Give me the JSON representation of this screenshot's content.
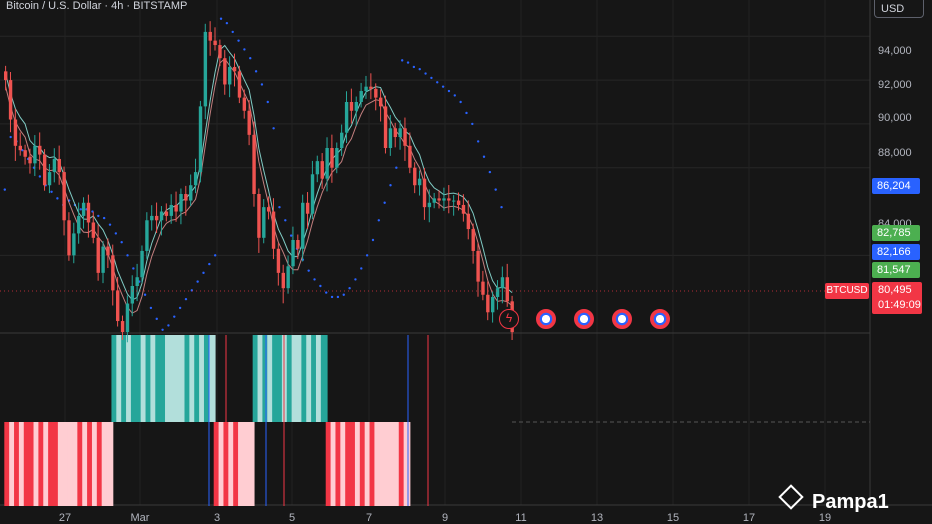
{
  "header": {
    "title": "Bitcoin / U.S. Dollar · 4h · BITSTAMP",
    "currency_button": "USD"
  },
  "price_axis": {
    "labels": [
      "94,000",
      "92,000",
      "90,000",
      "88,000",
      "84,000"
    ],
    "tags": [
      {
        "text": "86,204",
        "price": 86204,
        "color": "#2962ff"
      },
      {
        "text": "82,785",
        "price": 82785,
        "color": "#4caf50"
      },
      {
        "text": "82,166",
        "price": 82166,
        "color": "#2962ff"
      },
      {
        "text": "81,547",
        "price": 81547,
        "color": "#4caf50"
      }
    ],
    "last_price": "80,495",
    "countdown": "01:49:09",
    "symbol_tag": "BTCUSD"
  },
  "time_axis": {
    "labels": [
      "27",
      "Mar",
      "3",
      "5",
      "7",
      "9",
      "11",
      "13",
      "15",
      "17",
      "19"
    ]
  },
  "events": [
    {
      "name": "flash-icon",
      "kind": "flash"
    },
    {
      "name": "us-flag-icon",
      "kind": "us"
    },
    {
      "name": "us-flag-icon",
      "kind": "us"
    },
    {
      "name": "us-flag-icon",
      "kind": "us"
    },
    {
      "name": "us-flag-icon",
      "kind": "us"
    }
  ],
  "watermark": "Pampa1",
  "colors": {
    "up": "#26a69a",
    "down": "#ef5350",
    "hist_bull": "#26a69a",
    "hist_bull_light": "#b2dfdb",
    "hist_bear": "#f23645",
    "hist_bear_light": "#ffcdd2",
    "sar": "#2962ff",
    "bg": "#161616"
  },
  "chart_data": {
    "type": "candlestick",
    "title": "Bitcoin / U.S. Dollar · 4h · BITSTAMP",
    "symbol": "BTCUSD",
    "interval": "4h",
    "ylim": [
      80500,
      95200
    ],
    "y_ticks": [
      84000,
      88000,
      90000,
      92000,
      94000
    ],
    "last_price": 80495,
    "closes": [
      92000,
      90200,
      89000,
      88800,
      88500,
      88200,
      89000,
      88600,
      87200,
      87800,
      88400,
      87800,
      85600,
      84000,
      85000,
      85800,
      86400,
      85500,
      84800,
      83200,
      84400,
      84000,
      82400,
      81000,
      80500,
      81800,
      82600,
      83000,
      84200,
      85600,
      85800,
      85600,
      86000,
      85800,
      86300,
      86000,
      86800,
      86500,
      87200,
      87800,
      90800,
      94200,
      93800,
      93600,
      93000,
      91800,
      92600,
      92400,
      91200,
      90600,
      89500,
      86800,
      84800,
      86200,
      86000,
      84300,
      83200,
      82500,
      83500,
      84700,
      84300,
      86400,
      85900,
      87700,
      88300,
      87500,
      88900,
      88000,
      88900,
      89600,
      91000,
      90600,
      91000,
      91500,
      91700,
      91600,
      91200,
      90800,
      88900,
      89800,
      89400,
      89800,
      89000,
      88000,
      87200,
      87500,
      86200,
      86400,
      86600,
      86500,
      86600,
      86500,
      86500,
      86300,
      85900,
      85200,
      84200,
      82800,
      82200,
      81400,
      82100,
      82500,
      83000,
      81900,
      80495
    ],
    "sar": [
      87000,
      89400,
      89200,
      88800,
      88400,
      88000,
      87600,
      87200,
      86900,
      86600,
      86300,
      86500,
      86300,
      86100,
      86100,
      86000,
      85800,
      85700,
      85400,
      85000,
      84600,
      84000,
      83400,
      82800,
      82200,
      81600,
      81100,
      80600,
      80800,
      81200,
      81600,
      82000,
      82400,
      82800,
      83200,
      83600,
      84000,
      94800,
      94600,
      94200,
      93800,
      93400,
      93000,
      92400,
      91800,
      91000,
      89800,
      86200,
      85600,
      84900,
      84300,
      83800,
      83300,
      82900,
      82600,
      82300,
      82100,
      82100,
      82200,
      82500,
      82900,
      83400,
      84000,
      84700,
      85600,
      86400,
      87200,
      88000,
      92900,
      92800,
      92600,
      92500,
      92300,
      92100,
      91900,
      91700,
      91500,
      91300,
      91000,
      90500,
      90000,
      89200,
      88500,
      87800,
      87000,
      86200
    ],
    "histogram": {
      "series": [
        {
          "name": "bullish",
          "range_values": [
            [
              22,
              42
            ],
            [
              51,
              65
            ]
          ]
        },
        {
          "name": "bearish",
          "range_values": [
            [
              0,
              21
            ],
            [
              43,
              50
            ],
            [
              66,
              82
            ]
          ]
        }
      ]
    }
  }
}
